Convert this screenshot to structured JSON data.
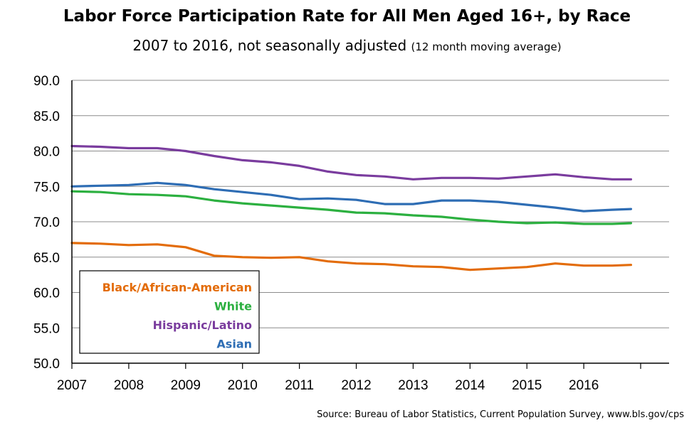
{
  "chart_data": {
    "type": "line",
    "title": "Labor Force Participation Rate for All Men Aged 16+, by Race",
    "subtitle": "2007 to 2016, not seasonally adjusted",
    "subtitle_note": "(12 month moving average)",
    "source": "Source: Bureau of Labor Statistics, Current Population Survey, www.bls.gov/cps",
    "xlabel": "",
    "ylabel": "",
    "ylim": [
      50,
      90
    ],
    "y_ticks": [
      "50.0",
      "55.0",
      "60.0",
      "65.0",
      "70.0",
      "75.0",
      "80.0",
      "85.0",
      "90.0"
    ],
    "x_ticks": [
      "2007",
      "2008",
      "2009",
      "2010",
      "2011",
      "2012",
      "2013",
      "2014",
      "2015",
      "2016"
    ],
    "xlim": [
      2007,
      2017.5
    ],
    "grid": "horizontal",
    "legend_position": "bottom-left",
    "x": [
      2007.0,
      2007.5,
      2008.0,
      2008.5,
      2009.0,
      2009.5,
      2010.0,
      2010.5,
      2011.0,
      2011.5,
      2012.0,
      2012.5,
      2013.0,
      2013.5,
      2014.0,
      2014.5,
      2015.0,
      2015.5,
      2016.0,
      2016.5,
      2016.83
    ],
    "series": [
      {
        "name": "Black/African-American",
        "color": "#e36c0a",
        "values": [
          67.0,
          66.9,
          66.7,
          66.8,
          66.4,
          65.2,
          65.0,
          64.9,
          65.0,
          64.4,
          64.1,
          64.0,
          63.7,
          63.6,
          63.2,
          63.4,
          63.6,
          64.1,
          63.8,
          63.8,
          63.9
        ]
      },
      {
        "name": "White",
        "color": "#2cb040",
        "values": [
          74.3,
          74.2,
          73.9,
          73.8,
          73.6,
          73.0,
          72.6,
          72.3,
          72.0,
          71.7,
          71.3,
          71.2,
          70.9,
          70.7,
          70.3,
          70.0,
          69.8,
          69.9,
          69.7,
          69.7,
          69.8
        ]
      },
      {
        "name": "Hispanic/Latino",
        "color": "#7a3c9e",
        "values": [
          80.7,
          80.6,
          80.4,
          80.4,
          80.0,
          79.3,
          78.7,
          78.4,
          77.9,
          77.1,
          76.6,
          76.4,
          76.0,
          76.2,
          76.2,
          76.1,
          76.4,
          76.7,
          76.3,
          76.0,
          76.0
        ]
      },
      {
        "name": "Asian",
        "color": "#2e6db4",
        "values": [
          75.0,
          75.1,
          75.2,
          75.5,
          75.2,
          74.6,
          74.2,
          73.8,
          73.2,
          73.3,
          73.1,
          72.5,
          72.5,
          73.0,
          73.0,
          72.8,
          72.4,
          72.0,
          71.5,
          71.7,
          71.8
        ]
      }
    ]
  }
}
